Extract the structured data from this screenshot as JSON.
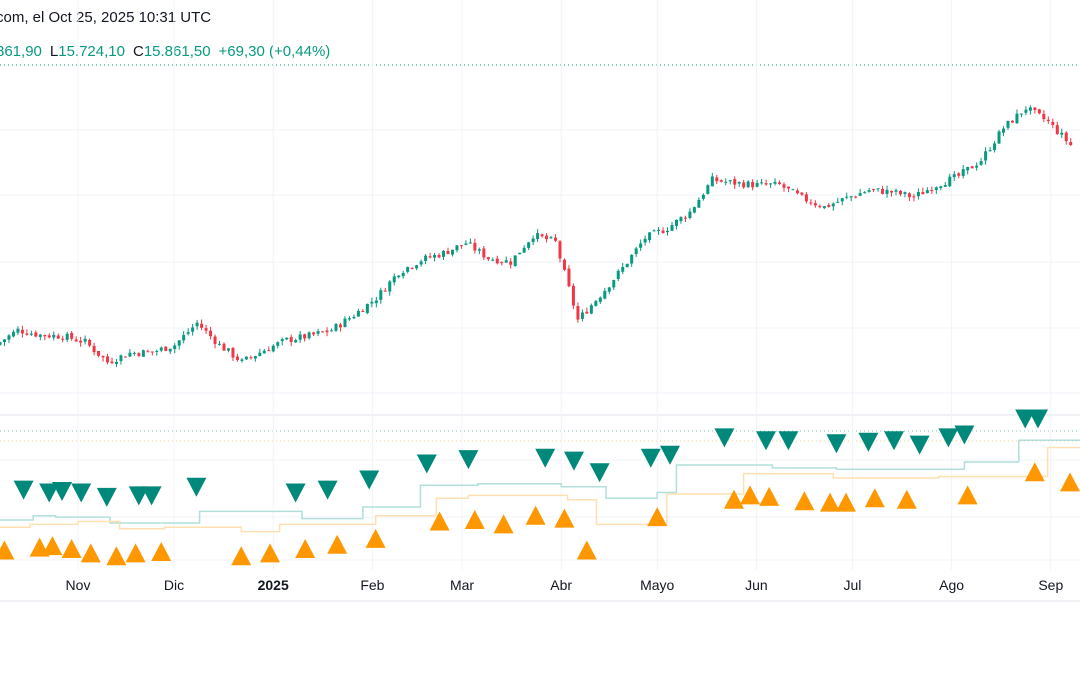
{
  "header": {
    "source_line": "com, el Oct 25, 2025 10:31 UTC",
    "ohlc": {
      "high_value": "861,90",
      "low_label": "L",
      "low_value": "15.724,10",
      "close_label": "C",
      "close_value": "15.861,50",
      "change": "+69,30 (+0,44%)"
    }
  },
  "colors": {
    "up": "#089981",
    "down": "#f23645",
    "marker_down": "#00897b",
    "marker_up": "#ff9800",
    "line_teal": "#b2dfdb",
    "line_orange": "#ffe0b2",
    "grid": "#f0f3fa"
  },
  "chart_data": {
    "type": "candlestick",
    "ylim": [
      13640,
      16440
    ],
    "x_tick_labels": [
      {
        "date": "2024-11-01",
        "label": "Nov",
        "bold": false
      },
      {
        "date": "2024-12-01",
        "label": "Dic",
        "bold": false
      },
      {
        "date": "2025-01-01",
        "label": "2025",
        "bold": true
      },
      {
        "date": "2025-02-01",
        "label": "Feb",
        "bold": false
      },
      {
        "date": "2025-03-01",
        "label": "Mar",
        "bold": false
      },
      {
        "date": "2025-04-01",
        "label": "Abr",
        "bold": false
      },
      {
        "date": "2025-05-01",
        "label": "Mayo",
        "bold": false
      },
      {
        "date": "2025-06-01",
        "label": "Jun",
        "bold": false
      },
      {
        "date": "2025-07-01",
        "label": "Jul",
        "bold": false
      },
      {
        "date": "2025-08-01",
        "label": "Ago",
        "bold": false
      },
      {
        "date": "2025-09-01",
        "label": "Sep",
        "bold": false
      }
    ],
    "weekly_close": [
      [
        "2024-10-07",
        14200
      ],
      [
        "2024-10-14",
        14320
      ],
      [
        "2024-10-21",
        14280
      ],
      [
        "2024-10-28",
        14272
      ],
      [
        "2024-11-04",
        14224
      ],
      [
        "2024-11-11",
        14064
      ],
      [
        "2024-11-18",
        14136
      ],
      [
        "2024-11-25",
        14144
      ],
      [
        "2024-12-02",
        14200
      ],
      [
        "2024-12-09",
        14376
      ],
      [
        "2024-12-16",
        14200
      ],
      [
        "2024-12-23",
        14064
      ],
      [
        "2024-12-30",
        14160
      ],
      [
        "2025-01-06",
        14240
      ],
      [
        "2025-01-13",
        14272
      ],
      [
        "2025-01-20",
        14320
      ],
      [
        "2025-01-27",
        14440
      ],
      [
        "2025-02-03",
        14576
      ],
      [
        "2025-02-10",
        14784
      ],
      [
        "2025-02-17",
        14880
      ],
      [
        "2025-02-24",
        14936
      ],
      [
        "2025-03-03",
        15016
      ],
      [
        "2025-03-10",
        14896
      ],
      [
        "2025-03-17",
        14864
      ],
      [
        "2025-03-24",
        15080
      ],
      [
        "2025-03-31",
        15024
      ],
      [
        "2025-04-07",
        14400
      ],
      [
        "2025-04-14",
        14600
      ],
      [
        "2025-04-21",
        14816
      ],
      [
        "2025-04-28",
        15056
      ],
      [
        "2025-05-05",
        15136
      ],
      [
        "2025-05-12",
        15264
      ],
      [
        "2025-05-19",
        15520
      ],
      [
        "2025-05-26",
        15496
      ],
      [
        "2025-06-02",
        15480
      ],
      [
        "2025-06-09",
        15480
      ],
      [
        "2025-06-16",
        15376
      ],
      [
        "2025-06-23",
        15304
      ],
      [
        "2025-06-30",
        15376
      ],
      [
        "2025-07-07",
        15440
      ],
      [
        "2025-07-14",
        15424
      ],
      [
        "2025-07-21",
        15384
      ],
      [
        "2025-07-28",
        15480
      ],
      [
        "2025-08-04",
        15552
      ],
      [
        "2025-08-11",
        15680
      ],
      [
        "2025-08-18",
        15936
      ],
      [
        "2025-08-25",
        16096
      ],
      [
        "2025-09-01",
        15984
      ],
      [
        "2025-09-08",
        15800
      ]
    ],
    "indicator_pane": {
      "ylim": [
        0,
        100
      ],
      "sell_markers": [
        [
          "2024-10-15",
          52
        ],
        [
          "2024-10-23",
          50
        ],
        [
          "2024-10-27",
          51
        ],
        [
          "2024-11-02",
          50
        ],
        [
          "2024-11-10",
          47
        ],
        [
          "2024-11-20",
          48
        ],
        [
          "2024-11-24",
          48
        ],
        [
          "2024-12-08",
          54
        ],
        [
          "2025-01-08",
          50
        ],
        [
          "2025-01-18",
          52
        ],
        [
          "2025-01-31",
          59
        ],
        [
          "2025-02-18",
          70
        ],
        [
          "2025-03-03",
          73
        ],
        [
          "2025-03-27",
          74
        ],
        [
          "2025-04-05",
          72
        ],
        [
          "2025-04-13",
          64
        ],
        [
          "2025-04-29",
          74
        ],
        [
          "2025-05-05",
          76
        ],
        [
          "2025-05-22",
          88
        ],
        [
          "2025-06-04",
          86
        ],
        [
          "2025-06-11",
          86
        ],
        [
          "2025-06-26",
          84
        ],
        [
          "2025-07-06",
          85
        ],
        [
          "2025-07-14",
          86
        ],
        [
          "2025-07-22",
          83
        ],
        [
          "2025-07-31",
          88
        ],
        [
          "2025-08-05",
          90
        ],
        [
          "2025-08-24",
          101
        ],
        [
          "2025-08-28",
          101
        ]
      ],
      "buy_markers": [
        [
          "2024-10-09",
          10
        ],
        [
          "2024-10-20",
          12
        ],
        [
          "2024-10-24",
          13
        ],
        [
          "2024-10-30",
          11
        ],
        [
          "2024-11-05",
          8
        ],
        [
          "2024-11-13",
          6
        ],
        [
          "2024-11-19",
          8
        ],
        [
          "2024-11-27",
          9
        ],
        [
          "2024-12-22",
          6
        ],
        [
          "2024-12-31",
          8
        ],
        [
          "2025-01-11",
          11
        ],
        [
          "2025-01-21",
          14
        ],
        [
          "2025-02-02",
          18
        ],
        [
          "2025-02-22",
          30
        ],
        [
          "2025-03-05",
          31
        ],
        [
          "2025-03-14",
          28
        ],
        [
          "2025-03-24",
          34
        ],
        [
          "2025-04-02",
          32
        ],
        [
          "2025-04-09",
          10
        ],
        [
          "2025-05-01",
          33
        ],
        [
          "2025-05-25",
          45
        ],
        [
          "2025-05-30",
          48
        ],
        [
          "2025-06-05",
          47
        ],
        [
          "2025-06-16",
          44
        ],
        [
          "2025-06-24",
          43
        ],
        [
          "2025-06-29",
          43
        ],
        [
          "2025-07-08",
          46
        ],
        [
          "2025-07-18",
          45
        ],
        [
          "2025-08-06",
          48
        ],
        [
          "2025-08-27",
          64
        ],
        [
          "2025-09-07",
          57
        ]
      ],
      "upper_step_line": [
        [
          "2024-10-07",
          31
        ],
        [
          "2024-10-18",
          34
        ],
        [
          "2024-10-25",
          33
        ],
        [
          "2024-11-11",
          29
        ],
        [
          "2024-12-09",
          37
        ],
        [
          "2025-01-10",
          32
        ],
        [
          "2025-01-29",
          40
        ],
        [
          "2025-02-16",
          55
        ],
        [
          "2025-03-06",
          56
        ],
        [
          "2025-04-01",
          54
        ],
        [
          "2025-04-15",
          46
        ],
        [
          "2025-05-01",
          50
        ],
        [
          "2025-05-07",
          69
        ],
        [
          "2025-06-06",
          67
        ],
        [
          "2025-06-26",
          66
        ],
        [
          "2025-08-05",
          71
        ],
        [
          "2025-08-22",
          86
        ]
      ],
      "lower_step_line": [
        [
          "2024-10-07",
          26
        ],
        [
          "2024-10-17",
          28
        ],
        [
          "2024-11-01",
          30
        ],
        [
          "2024-11-14",
          25
        ],
        [
          "2024-11-28",
          26
        ],
        [
          "2024-12-22",
          23
        ],
        [
          "2025-01-03",
          28
        ],
        [
          "2025-02-02",
          34
        ],
        [
          "2025-02-21",
          46
        ],
        [
          "2025-03-03",
          48
        ],
        [
          "2025-04-03",
          45
        ],
        [
          "2025-04-12",
          28
        ],
        [
          "2025-05-04",
          49
        ],
        [
          "2025-05-28",
          63
        ],
        [
          "2025-06-25",
          60
        ],
        [
          "2025-07-28",
          61
        ],
        [
          "2025-08-31",
          81
        ]
      ]
    }
  }
}
